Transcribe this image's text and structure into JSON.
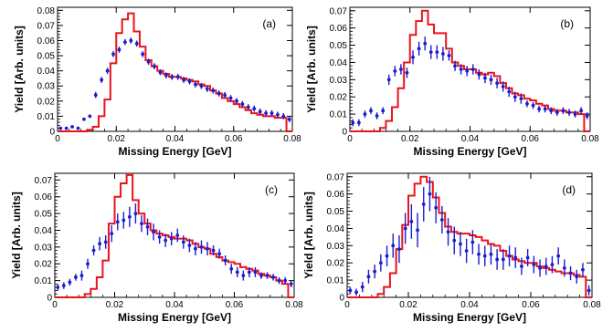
{
  "chart_data": [
    {
      "type": "line",
      "title": "",
      "panel_label": "(a)",
      "xlabel": "Missing Energy [GeV]",
      "ylabel": "Yield [Arb. units]",
      "xlim": [
        0,
        0.08
      ],
      "ylim": [
        0,
        0.082
      ],
      "xticks": [
        0,
        0.02,
        0.04,
        0.06,
        0.08
      ],
      "xtick_labels": [
        "0",
        "0.02",
        "0.04",
        "0.06",
        "0.08"
      ],
      "yticks": [
        0,
        0.01,
        0.02,
        0.03,
        0.04,
        0.05,
        0.06,
        0.07,
        0.08
      ],
      "ytick_labels": [
        "0",
        "0.01",
        "0.02",
        "0.03",
        "0.04",
        "0.05",
        "0.06",
        "0.07",
        "0.08"
      ],
      "grid": false,
      "line_color": "#e8141c",
      "point_color": "#1c1ccf",
      "line_bins": {
        "edges": [
          0,
          0.002,
          0.004,
          0.006,
          0.008,
          0.01,
          0.012,
          0.014,
          0.016,
          0.018,
          0.02,
          0.022,
          0.024,
          0.026,
          0.028,
          0.03,
          0.032,
          0.034,
          0.036,
          0.038,
          0.04,
          0.042,
          0.044,
          0.046,
          0.048,
          0.05,
          0.052,
          0.054,
          0.056,
          0.058,
          0.06,
          0.062,
          0.064,
          0.066,
          0.068,
          0.07,
          0.072,
          0.074,
          0.076,
          0.078,
          0.08
        ],
        "values": [
          0,
          0,
          0,
          0,
          0,
          0.001,
          0.003,
          0.01,
          0.021,
          0.045,
          0.065,
          0.074,
          0.078,
          0.066,
          0.056,
          0.047,
          0.043,
          0.04,
          0.038,
          0.036,
          0.036,
          0.035,
          0.034,
          0.033,
          0.031,
          0.03,
          0.027,
          0.025,
          0.022,
          0.02,
          0.018,
          0.016,
          0.014,
          0.012,
          0.011,
          0.01,
          0.01,
          0.009,
          0.009,
          0
        ]
      },
      "points": {
        "x": [
          0.001,
          0.003,
          0.005,
          0.007,
          0.009,
          0.011,
          0.013,
          0.015,
          0.017,
          0.019,
          0.021,
          0.023,
          0.025,
          0.027,
          0.029,
          0.031,
          0.033,
          0.035,
          0.037,
          0.039,
          0.041,
          0.043,
          0.045,
          0.047,
          0.049,
          0.051,
          0.053,
          0.055,
          0.057,
          0.059,
          0.061,
          0.063,
          0.065,
          0.067,
          0.069,
          0.071,
          0.073,
          0.075,
          0.077,
          0.079
        ],
        "y": [
          0.002,
          0.002,
          0.003,
          0.002,
          0.008,
          0.01,
          0.024,
          0.034,
          0.04,
          0.051,
          0.054,
          0.059,
          0.06,
          0.058,
          0.051,
          0.046,
          0.043,
          0.039,
          0.037,
          0.036,
          0.036,
          0.034,
          0.033,
          0.031,
          0.03,
          0.028,
          0.027,
          0.025,
          0.024,
          0.022,
          0.02,
          0.018,
          0.016,
          0.015,
          0.013,
          0.012,
          0.012,
          0.011,
          0.01,
          0.008
        ],
        "err": [
          0.001,
          0.001,
          0.001,
          0.001,
          0.001,
          0.001,
          0.002,
          0.002,
          0.002,
          0.002,
          0.002,
          0.002,
          0.002,
          0.002,
          0.002,
          0.002,
          0.002,
          0.002,
          0.002,
          0.002,
          0.002,
          0.002,
          0.002,
          0.002,
          0.002,
          0.002,
          0.002,
          0.002,
          0.002,
          0.002,
          0.002,
          0.002,
          0.002,
          0.002,
          0.002,
          0.002,
          0.002,
          0.002,
          0.002,
          0.002
        ]
      }
    },
    {
      "type": "line",
      "title": "",
      "panel_label": "(b)",
      "xlabel": "Missing Energy [GeV]",
      "ylabel": "Yield [Arb. units]",
      "xlim": [
        0,
        0.08
      ],
      "ylim": [
        0,
        0.072
      ],
      "xticks": [
        0,
        0.02,
        0.04,
        0.06,
        0.08
      ],
      "xtick_labels": [
        "0",
        "0.02",
        "0.04",
        "0.06",
        "0.08"
      ],
      "yticks": [
        0,
        0.01,
        0.02,
        0.03,
        0.04,
        0.05,
        0.06,
        0.07
      ],
      "ytick_labels": [
        "0",
        "0.01",
        "0.02",
        "0.03",
        "0.04",
        "0.05",
        "0.06",
        "0.07"
      ],
      "grid": false,
      "line_color": "#e8141c",
      "point_color": "#1c1ccf",
      "line_bins": {
        "edges": [
          0,
          0.002,
          0.004,
          0.006,
          0.008,
          0.01,
          0.012,
          0.014,
          0.016,
          0.018,
          0.02,
          0.022,
          0.024,
          0.026,
          0.028,
          0.03,
          0.032,
          0.034,
          0.036,
          0.038,
          0.04,
          0.042,
          0.044,
          0.046,
          0.048,
          0.05,
          0.052,
          0.054,
          0.056,
          0.058,
          0.06,
          0.062,
          0.064,
          0.066,
          0.068,
          0.07,
          0.072,
          0.074,
          0.076,
          0.078,
          0.08
        ],
        "values": [
          0,
          0,
          0,
          0,
          0,
          0.002,
          0.006,
          0.014,
          0.025,
          0.04,
          0.056,
          0.064,
          0.07,
          0.062,
          0.057,
          0.057,
          0.048,
          0.04,
          0.038,
          0.036,
          0.036,
          0.034,
          0.033,
          0.034,
          0.032,
          0.028,
          0.025,
          0.022,
          0.021,
          0.019,
          0.018,
          0.016,
          0.015,
          0.013,
          0.012,
          0.012,
          0.011,
          0.011,
          0.01,
          0
        ]
      },
      "points": {
        "x": [
          0.001,
          0.003,
          0.005,
          0.007,
          0.009,
          0.011,
          0.013,
          0.015,
          0.017,
          0.019,
          0.021,
          0.023,
          0.025,
          0.027,
          0.029,
          0.031,
          0.033,
          0.035,
          0.037,
          0.039,
          0.041,
          0.043,
          0.045,
          0.047,
          0.049,
          0.051,
          0.053,
          0.055,
          0.057,
          0.059,
          0.061,
          0.063,
          0.065,
          0.067,
          0.069,
          0.071,
          0.073,
          0.075,
          0.077,
          0.079
        ],
        "y": [
          0.005,
          0.005,
          0.01,
          0.012,
          0.009,
          0.012,
          0.03,
          0.035,
          0.036,
          0.034,
          0.043,
          0.048,
          0.051,
          0.046,
          0.046,
          0.045,
          0.044,
          0.038,
          0.036,
          0.035,
          0.036,
          0.033,
          0.031,
          0.03,
          0.028,
          0.026,
          0.023,
          0.02,
          0.019,
          0.016,
          0.015,
          0.013,
          0.013,
          0.012,
          0.011,
          0.012,
          0.011,
          0.01,
          0.012,
          0.009
        ],
        "err": [
          0.002,
          0.002,
          0.002,
          0.002,
          0.002,
          0.002,
          0.003,
          0.003,
          0.003,
          0.003,
          0.004,
          0.004,
          0.004,
          0.004,
          0.004,
          0.004,
          0.003,
          0.003,
          0.003,
          0.003,
          0.003,
          0.003,
          0.003,
          0.003,
          0.003,
          0.003,
          0.003,
          0.003,
          0.003,
          0.002,
          0.002,
          0.002,
          0.002,
          0.002,
          0.002,
          0.002,
          0.002,
          0.002,
          0.002,
          0.002
        ]
      }
    },
    {
      "type": "line",
      "title": "",
      "panel_label": "(c)",
      "xlabel": "Missing Energy [GeV]",
      "ylabel": "Yield [Arb. units]",
      "xlim": [
        0,
        0.08
      ],
      "ylim": [
        0,
        0.074
      ],
      "xticks": [
        0,
        0.02,
        0.04,
        0.06,
        0.08
      ],
      "xtick_labels": [
        "0",
        "0.02",
        "0.04",
        "0.06",
        "0.08"
      ],
      "yticks": [
        0,
        0.01,
        0.02,
        0.03,
        0.04,
        0.05,
        0.06,
        0.07
      ],
      "ytick_labels": [
        "0",
        "0.01",
        "0.02",
        "0.03",
        "0.04",
        "0.05",
        "0.06",
        "0.07"
      ],
      "grid": false,
      "line_color": "#e8141c",
      "point_color": "#1c1ccf",
      "line_bins": {
        "edges": [
          0,
          0.002,
          0.004,
          0.006,
          0.008,
          0.01,
          0.012,
          0.014,
          0.016,
          0.018,
          0.02,
          0.022,
          0.024,
          0.026,
          0.028,
          0.03,
          0.032,
          0.034,
          0.036,
          0.038,
          0.04,
          0.042,
          0.044,
          0.046,
          0.048,
          0.05,
          0.052,
          0.054,
          0.056,
          0.058,
          0.06,
          0.062,
          0.064,
          0.066,
          0.068,
          0.07,
          0.072,
          0.074,
          0.076,
          0.078,
          0.08
        ],
        "values": [
          0,
          0,
          0,
          0,
          0,
          0.002,
          0.005,
          0.012,
          0.022,
          0.044,
          0.06,
          0.068,
          0.073,
          0.058,
          0.05,
          0.044,
          0.04,
          0.038,
          0.037,
          0.036,
          0.035,
          0.035,
          0.034,
          0.032,
          0.03,
          0.029,
          0.026,
          0.024,
          0.022,
          0.021,
          0.02,
          0.018,
          0.017,
          0.016,
          0.014,
          0.013,
          0.012,
          0.01,
          0.008,
          0
        ]
      },
      "points": {
        "x": [
          0.001,
          0.003,
          0.005,
          0.007,
          0.009,
          0.011,
          0.013,
          0.015,
          0.017,
          0.019,
          0.021,
          0.023,
          0.025,
          0.027,
          0.029,
          0.031,
          0.033,
          0.035,
          0.037,
          0.039,
          0.041,
          0.043,
          0.045,
          0.047,
          0.049,
          0.051,
          0.053,
          0.055,
          0.057,
          0.059,
          0.061,
          0.063,
          0.065,
          0.067,
          0.069,
          0.071,
          0.073,
          0.075,
          0.077,
          0.079
        ],
        "y": [
          0.006,
          0.007,
          0.009,
          0.012,
          0.013,
          0.02,
          0.028,
          0.032,
          0.033,
          0.038,
          0.045,
          0.046,
          0.048,
          0.05,
          0.044,
          0.042,
          0.039,
          0.036,
          0.034,
          0.035,
          0.037,
          0.033,
          0.031,
          0.029,
          0.03,
          0.029,
          0.028,
          0.026,
          0.022,
          0.017,
          0.015,
          0.013,
          0.015,
          0.015,
          0.013,
          0.013,
          0.012,
          0.01,
          0.01,
          0.008
        ],
        "err": [
          0.002,
          0.002,
          0.002,
          0.002,
          0.003,
          0.003,
          0.003,
          0.004,
          0.004,
          0.005,
          0.005,
          0.005,
          0.006,
          0.006,
          0.005,
          0.005,
          0.005,
          0.004,
          0.004,
          0.004,
          0.004,
          0.004,
          0.004,
          0.004,
          0.004,
          0.004,
          0.003,
          0.003,
          0.003,
          0.003,
          0.003,
          0.003,
          0.003,
          0.003,
          0.002,
          0.002,
          0.002,
          0.002,
          0.002,
          0.002
        ]
      }
    },
    {
      "type": "line",
      "title": "",
      "panel_label": "(d)",
      "xlabel": "Missing Energy [GeV]",
      "ylabel": "Yield [Arb. units]",
      "xlim": [
        0,
        0.08
      ],
      "ylim": [
        0,
        0.072
      ],
      "xticks": [
        0,
        0.02,
        0.04,
        0.06,
        0.08
      ],
      "xtick_labels": [
        "0",
        "0.02",
        "0.04",
        "0.06",
        "0.08"
      ],
      "yticks": [
        0,
        0.01,
        0.02,
        0.03,
        0.04,
        0.05,
        0.06,
        0.07
      ],
      "ytick_labels": [
        "0",
        "0.01",
        "0.02",
        "0.03",
        "0.04",
        "0.05",
        "0.06",
        "0.07"
      ],
      "grid": false,
      "line_color": "#e8141c",
      "point_color": "#1c1ccf",
      "line_bins": {
        "edges": [
          0,
          0.002,
          0.004,
          0.006,
          0.008,
          0.01,
          0.012,
          0.014,
          0.016,
          0.018,
          0.02,
          0.022,
          0.024,
          0.026,
          0.028,
          0.03,
          0.032,
          0.034,
          0.036,
          0.038,
          0.04,
          0.042,
          0.044,
          0.046,
          0.048,
          0.05,
          0.052,
          0.054,
          0.056,
          0.058,
          0.06,
          0.062,
          0.064,
          0.066,
          0.068,
          0.07,
          0.072,
          0.074,
          0.076,
          0.078,
          0.08
        ],
        "values": [
          0,
          0,
          0,
          0,
          0,
          0.002,
          0.006,
          0.014,
          0.028,
          0.042,
          0.059,
          0.066,
          0.07,
          0.067,
          0.058,
          0.049,
          0.041,
          0.038,
          0.037,
          0.037,
          0.036,
          0.035,
          0.033,
          0.031,
          0.03,
          0.027,
          0.024,
          0.022,
          0.021,
          0.02,
          0.02,
          0.018,
          0.017,
          0.016,
          0.015,
          0.014,
          0.014,
          0.013,
          0.012,
          0
        ]
      },
      "points": {
        "x": [
          0.001,
          0.003,
          0.005,
          0.007,
          0.009,
          0.011,
          0.013,
          0.015,
          0.017,
          0.019,
          0.021,
          0.023,
          0.025,
          0.027,
          0.029,
          0.031,
          0.033,
          0.035,
          0.037,
          0.039,
          0.041,
          0.043,
          0.045,
          0.047,
          0.049,
          0.051,
          0.053,
          0.055,
          0.057,
          0.059,
          0.061,
          0.063,
          0.065,
          0.067,
          0.069,
          0.071,
          0.073,
          0.075,
          0.077,
          0.079
        ],
        "y": [
          0.004,
          0.003,
          0.006,
          0.012,
          0.015,
          0.02,
          0.024,
          0.03,
          0.028,
          0.04,
          0.044,
          0.039,
          0.054,
          0.06,
          0.052,
          0.045,
          0.038,
          0.033,
          0.031,
          0.027,
          0.032,
          0.025,
          0.024,
          0.025,
          0.022,
          0.022,
          0.024,
          0.023,
          0.018,
          0.023,
          0.019,
          0.017,
          0.018,
          0.019,
          0.024,
          0.017,
          0.014,
          0.012,
          0.016,
          0.004
        ],
        "err": [
          0.002,
          0.002,
          0.003,
          0.004,
          0.004,
          0.005,
          0.006,
          0.007,
          0.008,
          0.009,
          0.01,
          0.01,
          0.01,
          0.01,
          0.009,
          0.008,
          0.008,
          0.008,
          0.007,
          0.007,
          0.007,
          0.006,
          0.006,
          0.006,
          0.006,
          0.006,
          0.006,
          0.006,
          0.005,
          0.005,
          0.005,
          0.005,
          0.005,
          0.005,
          0.005,
          0.005,
          0.004,
          0.004,
          0.004,
          0.003
        ]
      }
    }
  ]
}
